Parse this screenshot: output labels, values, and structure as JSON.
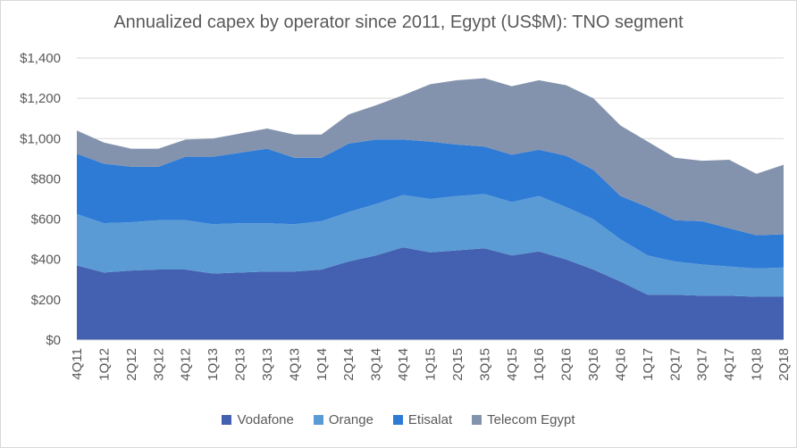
{
  "chart_data": {
    "type": "area",
    "stacked": true,
    "title": "Annualized capex by operator since 2011, Egypt (US$M): TNO segment",
    "xlabel": "",
    "ylabel": "",
    "ylim": [
      0,
      1400
    ],
    "y_ticks": [
      "$0",
      "$200",
      "$400",
      "$600",
      "$800",
      "$1,000",
      "$1,200",
      "$1,400"
    ],
    "y_tick_values": [
      0,
      200,
      400,
      600,
      800,
      1000,
      1200,
      1400
    ],
    "grid": true,
    "legend_position": "bottom",
    "categories": [
      "4Q11",
      "1Q12",
      "2Q12",
      "3Q12",
      "4Q12",
      "1Q13",
      "2Q13",
      "3Q13",
      "4Q13",
      "1Q14",
      "2Q14",
      "3Q14",
      "4Q14",
      "1Q15",
      "2Q15",
      "3Q15",
      "4Q15",
      "1Q16",
      "2Q16",
      "3Q16",
      "4Q16",
      "1Q17",
      "2Q17",
      "3Q17",
      "4Q17",
      "1Q18",
      "2Q18"
    ],
    "series": [
      {
        "name": "Vodafone",
        "color": "#4361b0",
        "values": [
          370,
          335,
          345,
          350,
          350,
          330,
          335,
          340,
          340,
          350,
          390,
          420,
          460,
          435,
          445,
          455,
          420,
          440,
          400,
          350,
          290,
          225,
          225,
          220,
          220,
          215,
          215
        ]
      },
      {
        "name": "Orange",
        "color": "#5b9bd5",
        "values": [
          255,
          245,
          240,
          245,
          245,
          245,
          245,
          240,
          235,
          240,
          245,
          255,
          260,
          265,
          270,
          270,
          265,
          275,
          260,
          250,
          210,
          195,
          165,
          155,
          145,
          140,
          145
        ]
      },
      {
        "name": "Etisalat",
        "color": "#2e7bd6",
        "values": [
          300,
          295,
          275,
          265,
          315,
          335,
          350,
          370,
          330,
          315,
          340,
          320,
          275,
          285,
          255,
          235,
          235,
          230,
          255,
          245,
          215,
          240,
          205,
          215,
          190,
          165,
          165
        ]
      },
      {
        "name": "Telecom Egypt",
        "color": "#8493ad",
        "values": [
          115,
          105,
          90,
          90,
          85,
          90,
          95,
          100,
          115,
          115,
          145,
          170,
          220,
          285,
          320,
          340,
          340,
          345,
          350,
          355,
          350,
          325,
          310,
          300,
          340,
          305,
          345
        ]
      }
    ]
  }
}
